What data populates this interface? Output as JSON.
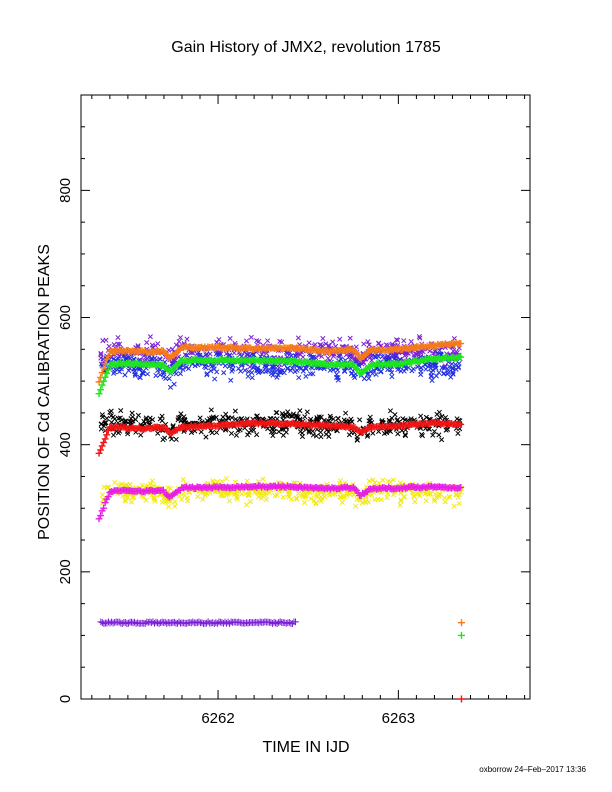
{
  "chart_data": {
    "type": "scatter",
    "title": "Gain History of JMX2, revolution 1785",
    "xlabel": "TIME IN IJD",
    "ylabel": "POSITION OF Cd CALIBRATION PEAKS",
    "xlim": [
      6261.24,
      6263.73
    ],
    "ylim": [
      0,
      950
    ],
    "x_ticks": [
      6262,
      6263
    ],
    "x_tick_labels": [
      "6262",
      "6263"
    ],
    "y_ticks": [
      0,
      200,
      400,
      600,
      800
    ],
    "y_tick_labels": [
      "0",
      "200",
      "400",
      "600",
      "800"
    ],
    "grid": false,
    "legend": "none",
    "footer": "oxborrow 24–Feb–2017 13:36",
    "series": [
      {
        "marker": "x",
        "color": "#7c1fd6",
        "x_range": [
          6261.35,
          6263.35
        ],
        "level": 545,
        "scatter": 12
      },
      {
        "marker": "x",
        "color": "#1f2fe0",
        "x_range": [
          6261.35,
          6263.35
        ],
        "level": 525,
        "scatter": 12
      },
      {
        "marker": "x",
        "color": "#000000",
        "x_range": [
          6261.35,
          6263.35
        ],
        "level": 432,
        "scatter": 11
      },
      {
        "marker": "x",
        "color": "#f2ea12",
        "x_range": [
          6261.35,
          6263.35
        ],
        "level": 327,
        "scatter": 11
      },
      {
        "marker": "+",
        "color": "#f57a1a",
        "x": [
          6261.34,
          6261.4,
          6261.5,
          6261.6,
          6261.7,
          6261.73,
          6261.8,
          6262.0,
          6262.2,
          6262.4,
          6262.6,
          6262.75,
          6262.79,
          6262.85,
          6263.0,
          6263.2,
          6263.35
        ],
        "y": [
          500,
          547,
          548,
          546,
          547,
          535,
          553,
          553,
          551,
          552,
          547,
          549,
          535,
          549,
          550,
          556,
          560
        ]
      },
      {
        "marker": "+",
        "color": "#1ee61e",
        "x": [
          6261.34,
          6261.4,
          6261.5,
          6261.6,
          6261.7,
          6261.73,
          6261.8,
          6262.0,
          6262.2,
          6262.4,
          6262.6,
          6262.75,
          6262.79,
          6262.85,
          6263.0,
          6263.2,
          6263.35
        ],
        "y": [
          480,
          525,
          528,
          526,
          525,
          514,
          532,
          533,
          532,
          532,
          526,
          526,
          512,
          526,
          527,
          535,
          538
        ]
      },
      {
        "marker": "+",
        "color": "#f01414",
        "x": [
          6261.34,
          6261.4,
          6261.5,
          6261.6,
          6261.7,
          6261.73,
          6261.8,
          6262.0,
          6262.2,
          6262.4,
          6262.6,
          6262.75,
          6262.79,
          6262.85,
          6263.0,
          6263.2,
          6263.35
        ],
        "y": [
          385,
          428,
          426,
          425,
          428,
          418,
          428,
          430,
          434,
          433,
          430,
          428,
          420,
          428,
          430,
          434,
          432
        ]
      },
      {
        "marker": "+",
        "color": "#e81ee8",
        "x": [
          6261.34,
          6261.4,
          6261.5,
          6261.6,
          6261.7,
          6261.73,
          6261.8,
          6262.0,
          6262.2,
          6262.4,
          6262.6,
          6262.75,
          6262.79,
          6262.85,
          6263.0,
          6263.2,
          6263.35
        ],
        "y": [
          283,
          326,
          328,
          327,
          328,
          316,
          332,
          333,
          334,
          334,
          331,
          333,
          320,
          331,
          332,
          334,
          332
        ]
      },
      {
        "marker": "x",
        "color": "#7c1fd6",
        "x": [
          6261.35,
          6261.36,
          6261.75,
          6261.99,
          6262.0,
          6262.02,
          6262.43
        ],
        "y": [
          120,
          120,
          120,
          120,
          120,
          120,
          120
        ]
      },
      {
        "marker": "+",
        "color": "#f57a1a",
        "x": [
          6263.35
        ],
        "y": [
          120
        ]
      },
      {
        "marker": "+",
        "color": "#1ee61e",
        "x": [
          6263.35
        ],
        "y": [
          100
        ]
      },
      {
        "marker": "+",
        "color": "#f01414",
        "x": [
          6263.35
        ],
        "y": [
          0
        ]
      }
    ]
  }
}
